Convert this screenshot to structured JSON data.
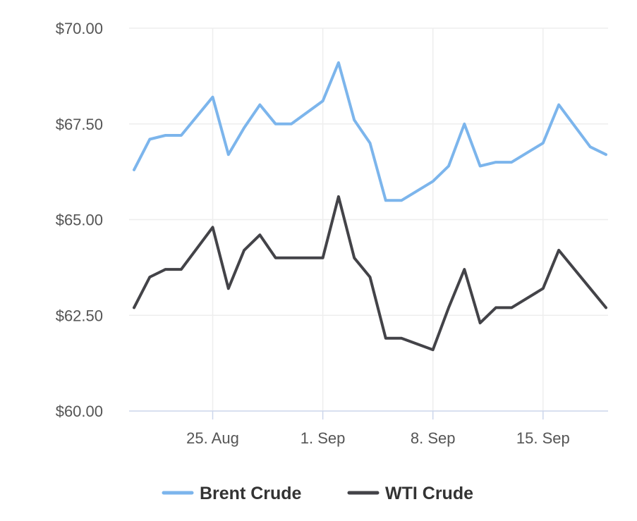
{
  "chart_data": {
    "type": "line",
    "y_axis": {
      "min": 60,
      "max": 70,
      "ticks": [
        60,
        62.5,
        65,
        67.5,
        70
      ],
      "tick_labels": [
        "$60.00",
        "$62.50",
        "$65.00",
        "$67.50",
        "$70.00"
      ]
    },
    "x_axis": {
      "start_date": "2025-08-20",
      "end_date": "2025-09-19",
      "ticks": [
        "2025-08-25",
        "2025-09-01",
        "2025-09-08",
        "2025-09-15"
      ],
      "tick_labels": [
        "25. Aug",
        "1. Sep",
        "8. Sep",
        "15. Sep"
      ]
    },
    "grid": true,
    "legend_position": "bottom",
    "series": [
      {
        "name": "Brent Crude",
        "color": "#7cb5ec",
        "points": [
          {
            "x": "2025-08-20",
            "y": 66.3
          },
          {
            "x": "2025-08-21",
            "y": 67.1
          },
          {
            "x": "2025-08-22",
            "y": 67.2
          },
          {
            "x": "2025-08-23",
            "y": 67.2
          },
          {
            "x": "2025-08-25",
            "y": 68.2
          },
          {
            "x": "2025-08-26",
            "y": 66.7
          },
          {
            "x": "2025-08-27",
            "y": 67.4
          },
          {
            "x": "2025-08-28",
            "y": 68.0
          },
          {
            "x": "2025-08-29",
            "y": 67.5
          },
          {
            "x": "2025-08-30",
            "y": 67.5
          },
          {
            "x": "2025-09-01",
            "y": 68.1
          },
          {
            "x": "2025-09-02",
            "y": 69.1
          },
          {
            "x": "2025-09-03",
            "y": 67.6
          },
          {
            "x": "2025-09-04",
            "y": 67.0
          },
          {
            "x": "2025-09-05",
            "y": 65.5
          },
          {
            "x": "2025-09-06",
            "y": 65.5
          },
          {
            "x": "2025-09-08",
            "y": 66.0
          },
          {
            "x": "2025-09-09",
            "y": 66.4
          },
          {
            "x": "2025-09-10",
            "y": 67.5
          },
          {
            "x": "2025-09-11",
            "y": 66.4
          },
          {
            "x": "2025-09-12",
            "y": 66.5
          },
          {
            "x": "2025-09-13",
            "y": 66.5
          },
          {
            "x": "2025-09-15",
            "y": 67.0
          },
          {
            "x": "2025-09-16",
            "y": 68.0
          },
          {
            "x": "2025-09-18",
            "y": 66.9
          },
          {
            "x": "2025-09-19",
            "y": 66.7
          }
        ]
      },
      {
        "name": "WTI Crude",
        "color": "#434348",
        "points": [
          {
            "x": "2025-08-20",
            "y": 62.7
          },
          {
            "x": "2025-08-21",
            "y": 63.5
          },
          {
            "x": "2025-08-22",
            "y": 63.7
          },
          {
            "x": "2025-08-23",
            "y": 63.7
          },
          {
            "x": "2025-08-25",
            "y": 64.8
          },
          {
            "x": "2025-08-26",
            "y": 63.2
          },
          {
            "x": "2025-08-27",
            "y": 64.2
          },
          {
            "x": "2025-08-28",
            "y": 64.6
          },
          {
            "x": "2025-08-29",
            "y": 64.0
          },
          {
            "x": "2025-08-30",
            "y": 64.0
          },
          {
            "x": "2025-09-01",
            "y": 64.0
          },
          {
            "x": "2025-09-02",
            "y": 65.6
          },
          {
            "x": "2025-09-03",
            "y": 64.0
          },
          {
            "x": "2025-09-04",
            "y": 63.5
          },
          {
            "x": "2025-09-05",
            "y": 61.9
          },
          {
            "x": "2025-09-06",
            "y": 61.9
          },
          {
            "x": "2025-09-08",
            "y": 61.6
          },
          {
            "x": "2025-09-09",
            "y": 62.7
          },
          {
            "x": "2025-09-10",
            "y": 63.7
          },
          {
            "x": "2025-09-11",
            "y": 62.3
          },
          {
            "x": "2025-09-12",
            "y": 62.7
          },
          {
            "x": "2025-09-13",
            "y": 62.7
          },
          {
            "x": "2025-09-15",
            "y": 63.2
          },
          {
            "x": "2025-09-16",
            "y": 64.2
          },
          {
            "x": "2025-09-18",
            "y": 63.2
          },
          {
            "x": "2025-09-19",
            "y": 62.7
          }
        ]
      }
    ]
  }
}
